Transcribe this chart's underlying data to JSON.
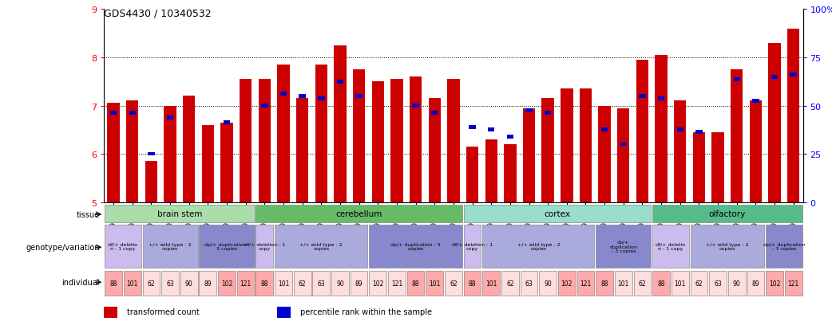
{
  "title": "GDS4430 / 10340532",
  "samples": [
    "GSM792717",
    "GSM792694",
    "GSM792693",
    "GSM792713",
    "GSM792724",
    "GSM792721",
    "GSM792700",
    "GSM792705",
    "GSM792718",
    "GSM792695",
    "GSM792696",
    "GSM792709",
    "GSM792714",
    "GSM792725",
    "GSM792726",
    "GSM792722",
    "GSM792701",
    "GSM792702",
    "GSM792706",
    "GSM792719",
    "GSM792697",
    "GSM792698",
    "GSM792710",
    "GSM792715",
    "GSM792727",
    "GSM792728",
    "GSM792703",
    "GSM792707",
    "GSM792720",
    "GSM792699",
    "GSM792711",
    "GSM792712",
    "GSM792716",
    "GSM792729",
    "GSM792723",
    "GSM792704",
    "GSM792708"
  ],
  "red_values": [
    7.05,
    7.1,
    5.85,
    7.0,
    7.2,
    6.6,
    6.65,
    7.55,
    7.55,
    7.85,
    7.15,
    7.85,
    8.25,
    7.75,
    7.5,
    7.55,
    7.6,
    7.15,
    7.55,
    6.15,
    6.3,
    6.2,
    6.95,
    7.15,
    7.35,
    7.35,
    7.0,
    6.95,
    7.95,
    8.05,
    7.1,
    6.45,
    6.45,
    7.75,
    7.1,
    8.3,
    8.6
  ],
  "blue_values": [
    6.85,
    6.85,
    6.0,
    6.75,
    null,
    null,
    6.65,
    null,
    7.0,
    7.25,
    7.2,
    7.15,
    7.5,
    7.2,
    null,
    null,
    7.0,
    6.85,
    null,
    6.55,
    6.5,
    6.35,
    6.9,
    6.85,
    null,
    null,
    6.5,
    6.2,
    7.2,
    7.15,
    6.5,
    6.45,
    null,
    7.55,
    7.1,
    7.6,
    7.65
  ],
  "ylim": [
    5.0,
    9.0
  ],
  "yticks": [
    5,
    6,
    7,
    8,
    9
  ],
  "ytick_labels": [
    "5",
    "6",
    "7",
    "8",
    "9"
  ],
  "right_yticks": [
    0,
    25,
    50,
    75,
    100
  ],
  "right_ytick_labels": [
    "0",
    "25",
    "50",
    "75",
    "100%"
  ],
  "hlines": [
    6.0,
    7.0,
    8.0
  ],
  "bar_color": "#CC0000",
  "blue_color": "#0000CC",
  "bar_width": 0.65,
  "tissues": [
    {
      "label": "brain stem",
      "start": 0,
      "end": 8,
      "color": "#AADDAA"
    },
    {
      "label": "cerebellum",
      "start": 8,
      "end": 19,
      "color": "#66BB66"
    },
    {
      "label": "cortex",
      "start": 19,
      "end": 29,
      "color": "#99DDCC"
    },
    {
      "label": "olfactory",
      "start": 29,
      "end": 37,
      "color": "#55BB88"
    }
  ],
  "genotypes": [
    {
      "label": "df/+ deletio\nn - 1 copy",
      "start": 0,
      "end": 2,
      "color": "#CCBBEE"
    },
    {
      "label": "+/+ wild type - 2\ncopies",
      "start": 2,
      "end": 5,
      "color": "#AAAADD"
    },
    {
      "label": "dp/+ duplication -\n3 copies",
      "start": 5,
      "end": 8,
      "color": "#8888CC"
    },
    {
      "label": "df/+ deletion - 1\ncopy",
      "start": 8,
      "end": 9,
      "color": "#CCBBEE"
    },
    {
      "label": "+/+ wild type - 2\ncopies",
      "start": 9,
      "end": 14,
      "color": "#AAAADD"
    },
    {
      "label": "dp/+ duplication - 3\ncopies",
      "start": 14,
      "end": 19,
      "color": "#8888CC"
    },
    {
      "label": "df/+ deletion - 1\ncopy",
      "start": 19,
      "end": 20,
      "color": "#CCBBEE"
    },
    {
      "label": "+/+ wild type - 2\ncopies",
      "start": 20,
      "end": 26,
      "color": "#AAAADD"
    },
    {
      "label": "dp/+\nduplication\n- 3 copies",
      "start": 26,
      "end": 29,
      "color": "#8888CC"
    },
    {
      "label": "df/+ deletio\nn - 1 copy",
      "start": 29,
      "end": 31,
      "color": "#CCBBEE"
    },
    {
      "label": "+/+ wild type - 2\ncopies",
      "start": 31,
      "end": 35,
      "color": "#AAAADD"
    },
    {
      "label": "dp/+ duplication\n- 3 copies",
      "start": 35,
      "end": 37,
      "color": "#8888CC"
    }
  ],
  "all_indivs": [
    [
      "88",
      "#FFAAAA"
    ],
    [
      "101",
      "#FFAAAA"
    ],
    [
      "62",
      "#FFDDDD"
    ],
    [
      "63",
      "#FFDDDD"
    ],
    [
      "90",
      "#FFDDDD"
    ],
    [
      "89",
      "#FFDDDD"
    ],
    [
      "102",
      "#FFAAAA"
    ],
    [
      "121",
      "#FFAAAA"
    ],
    [
      "88",
      "#FFAAAA"
    ],
    [
      "101",
      "#FFDDDD"
    ],
    [
      "62",
      "#FFDDDD"
    ],
    [
      "63",
      "#FFDDDD"
    ],
    [
      "90",
      "#FFDDDD"
    ],
    [
      "89",
      "#FFDDDD"
    ],
    [
      "102",
      "#FFDDDD"
    ],
    [
      "121",
      "#FFDDDD"
    ],
    [
      "88",
      "#FFAAAA"
    ],
    [
      "101",
      "#FFAAAA"
    ],
    [
      "62",
      "#FFDDDD"
    ],
    [
      "88",
      "#FFAAAA"
    ],
    [
      "101",
      "#FFAAAA"
    ],
    [
      "62",
      "#FFDDDD"
    ],
    [
      "63",
      "#FFDDDD"
    ],
    [
      "90",
      "#FFDDDD"
    ],
    [
      "102",
      "#FFAAAA"
    ],
    [
      "121",
      "#FFAAAA"
    ],
    [
      "88",
      "#FFAAAA"
    ],
    [
      "101",
      "#FFDDDD"
    ],
    [
      "62",
      "#FFDDDD"
    ],
    [
      "88",
      "#FFAAAA"
    ],
    [
      "101",
      "#FFDDDD"
    ],
    [
      "62",
      "#FFDDDD"
    ],
    [
      "63",
      "#FFDDDD"
    ],
    [
      "90",
      "#FFDDDD"
    ],
    [
      "89",
      "#FFDDDD"
    ],
    [
      "102",
      "#FFAAAA"
    ],
    [
      "121",
      "#FFAAAA"
    ]
  ],
  "row_label_fontsize": 7,
  "legend_items": [
    {
      "label": "transformed count",
      "color": "#CC0000"
    },
    {
      "label": "percentile rank within the sample",
      "color": "#0000CC"
    }
  ]
}
